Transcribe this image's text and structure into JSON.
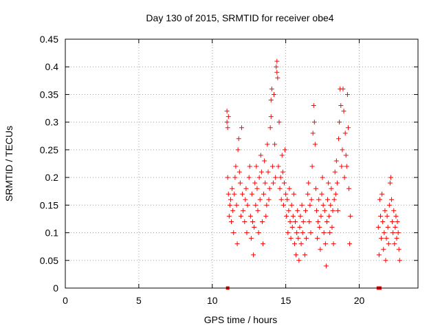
{
  "chart_data": {
    "type": "scatter",
    "title": "Day 130 of 2015, SRMTID for receiver obe4",
    "xlabel": "GPS time / hours",
    "ylabel": "SRMTID / TECUs",
    "xlim": [
      0,
      24
    ],
    "ylim": [
      0,
      0.45
    ],
    "xticks": [
      0,
      5,
      10,
      15,
      20
    ],
    "xtick_labels": [
      "0",
      "5",
      "10",
      "15",
      "20"
    ],
    "yticks": [
      0,
      0.05,
      0.1,
      0.15,
      0.2,
      0.25,
      0.3,
      0.35,
      0.4,
      0.45
    ],
    "ytick_labels": [
      "0",
      "0.05",
      "0.1",
      "0.15",
      "0.2",
      "0.25",
      "0.3",
      "0.35",
      "0.4",
      "0.45"
    ],
    "grid": true,
    "marker": "+",
    "color": "#ff0000",
    "series": [
      {
        "name": "SRMTID",
        "points": [
          [
            11.0,
            0.32
          ],
          [
            11.0,
            0.3
          ],
          [
            11.05,
            0.29
          ],
          [
            11.1,
            0.31
          ],
          [
            11.05,
            0.2
          ],
          [
            11.1,
            0.17
          ],
          [
            11.2,
            0.15
          ],
          [
            11.15,
            0.13
          ],
          [
            11.3,
            0.12
          ],
          [
            11.25,
            0.16
          ],
          [
            11.35,
            0.18
          ],
          [
            11.4,
            0.14
          ],
          [
            11.45,
            0.1
          ],
          [
            11.5,
            0.17
          ],
          [
            11.55,
            0.2
          ],
          [
            11.6,
            0.22
          ],
          [
            11.65,
            0.15
          ],
          [
            11.7,
            0.08
          ],
          [
            11.75,
            0.25
          ],
          [
            11.8,
            0.27
          ],
          [
            11.85,
            0.21
          ],
          [
            11.9,
            0.19
          ],
          [
            11.95,
            0.13
          ],
          [
            12.0,
            0.29
          ],
          [
            12.05,
            0.17
          ],
          [
            12.1,
            0.14
          ],
          [
            12.2,
            0.12
          ],
          [
            12.25,
            0.16
          ],
          [
            12.3,
            0.18
          ],
          [
            12.35,
            0.1
          ],
          [
            12.4,
            0.15
          ],
          [
            12.5,
            0.2
          ],
          [
            12.55,
            0.22
          ],
          [
            12.6,
            0.13
          ],
          [
            12.65,
            0.09
          ],
          [
            12.7,
            0.17
          ],
          [
            12.75,
            0.12
          ],
          [
            12.8,
            0.06
          ],
          [
            12.85,
            0.11
          ],
          [
            12.9,
            0.19
          ],
          [
            12.95,
            0.15
          ],
          [
            13.0,
            0.22
          ],
          [
            13.05,
            0.18
          ],
          [
            13.1,
            0.14
          ],
          [
            13.15,
            0.1
          ],
          [
            13.2,
            0.2
          ],
          [
            13.25,
            0.16
          ],
          [
            13.3,
            0.24
          ],
          [
            13.35,
            0.21
          ],
          [
            13.4,
            0.12
          ],
          [
            13.45,
            0.08
          ],
          [
            13.5,
            0.17
          ],
          [
            13.55,
            0.23
          ],
          [
            13.6,
            0.19
          ],
          [
            13.65,
            0.13
          ],
          [
            13.7,
            0.15
          ],
          [
            13.75,
            0.26
          ],
          [
            13.8,
            0.21
          ],
          [
            13.85,
            0.16
          ],
          [
            13.9,
            0.18
          ],
          [
            13.95,
            0.29
          ],
          [
            14.0,
            0.34
          ],
          [
            14.0,
            0.31
          ],
          [
            14.05,
            0.36
          ],
          [
            14.1,
            0.22
          ],
          [
            14.15,
            0.19
          ],
          [
            14.2,
            0.35
          ],
          [
            14.25,
            0.26
          ],
          [
            14.3,
            0.2
          ],
          [
            14.35,
            0.4
          ],
          [
            14.4,
            0.41
          ],
          [
            14.45,
            0.38
          ],
          [
            14.4,
            0.39
          ],
          [
            14.5,
            0.22
          ],
          [
            14.55,
            0.3
          ],
          [
            14.6,
            0.18
          ],
          [
            14.65,
            0.2
          ],
          [
            14.7,
            0.16
          ],
          [
            14.75,
            0.24
          ],
          [
            14.8,
            0.21
          ],
          [
            14.85,
            0.15
          ],
          [
            14.9,
            0.19
          ],
          [
            14.95,
            0.25
          ],
          [
            15.0,
            0.17
          ],
          [
            15.05,
            0.13
          ],
          [
            15.1,
            0.16
          ],
          [
            15.15,
            0.1
          ],
          [
            15.2,
            0.14
          ],
          [
            15.25,
            0.18
          ],
          [
            15.3,
            0.12
          ],
          [
            15.35,
            0.09
          ],
          [
            15.4,
            0.15
          ],
          [
            15.45,
            0.11
          ],
          [
            15.5,
            0.13
          ],
          [
            15.55,
            0.17
          ],
          [
            15.6,
            0.08
          ],
          [
            15.65,
            0.12
          ],
          [
            15.7,
            0.06
          ],
          [
            15.75,
            0.1
          ],
          [
            15.8,
            0.14
          ],
          [
            15.85,
            0.09
          ],
          [
            15.9,
            0.05
          ],
          [
            15.95,
            0.11
          ],
          [
            16.0,
            0.13
          ],
          [
            16.05,
            0.08
          ],
          [
            16.1,
            0.15
          ],
          [
            16.15,
            0.1
          ],
          [
            16.2,
            0.12
          ],
          [
            16.3,
            0.06
          ],
          [
            16.35,
            0.14
          ],
          [
            16.4,
            0.09
          ],
          [
            16.5,
            0.17
          ],
          [
            16.55,
            0.19
          ],
          [
            16.6,
            0.12
          ],
          [
            16.65,
            0.15
          ],
          [
            16.7,
            0.1
          ],
          [
            16.75,
            0.16
          ],
          [
            16.8,
            0.22
          ],
          [
            16.85,
            0.28
          ],
          [
            16.9,
            0.33
          ],
          [
            16.95,
            0.3
          ],
          [
            17.0,
            0.26
          ],
          [
            17.05,
            0.18
          ],
          [
            17.1,
            0.14
          ],
          [
            17.15,
            0.09
          ],
          [
            17.2,
            0.12
          ],
          [
            17.25,
            0.16
          ],
          [
            17.3,
            0.11
          ],
          [
            17.35,
            0.07
          ],
          [
            17.4,
            0.13
          ],
          [
            17.45,
            0.17
          ],
          [
            17.5,
            0.2
          ],
          [
            17.55,
            0.15
          ],
          [
            17.6,
            0.1
          ],
          [
            17.65,
            0.14
          ],
          [
            17.7,
            0.08
          ],
          [
            17.75,
            0.04
          ],
          [
            17.8,
            0.12
          ],
          [
            17.85,
            0.16
          ],
          [
            17.9,
            0.19
          ],
          [
            17.95,
            0.13
          ],
          [
            18.0,
            0.1
          ],
          [
            18.05,
            0.15
          ],
          [
            18.1,
            0.18
          ],
          [
            18.15,
            0.11
          ],
          [
            18.2,
            0.14
          ],
          [
            18.25,
            0.08
          ],
          [
            18.3,
            0.16
          ],
          [
            18.35,
            0.21
          ],
          [
            18.4,
            0.17
          ],
          [
            18.45,
            0.23
          ],
          [
            18.5,
            0.19
          ],
          [
            18.55,
            0.14
          ],
          [
            18.6,
            0.27
          ],
          [
            18.65,
            0.3
          ],
          [
            18.7,
            0.36
          ],
          [
            18.75,
            0.33
          ],
          [
            18.8,
            0.22
          ],
          [
            18.85,
            0.25
          ],
          [
            18.9,
            0.36
          ],
          [
            18.95,
            0.32
          ],
          [
            19.0,
            0.2
          ],
          [
            19.05,
            0.28
          ],
          [
            19.1,
            0.24
          ],
          [
            19.15,
            0.22
          ],
          [
            19.2,
            0.35
          ],
          [
            19.25,
            0.29
          ],
          [
            19.3,
            0.18
          ],
          [
            19.35,
            0.08
          ],
          [
            19.4,
            0.13
          ],
          [
            21.3,
            0.11
          ],
          [
            21.35,
            0.06
          ],
          [
            21.4,
            0.16
          ],
          [
            21.45,
            0.13
          ],
          [
            21.5,
            0.09
          ],
          [
            21.55,
            0.17
          ],
          [
            21.6,
            0.12
          ],
          [
            21.65,
            0.07
          ],
          [
            21.7,
            0.1
          ],
          [
            21.75,
            0.14
          ],
          [
            21.8,
            0.05
          ],
          [
            21.85,
            0.09
          ],
          [
            21.9,
            0.13
          ],
          [
            21.95,
            0.11
          ],
          [
            22.0,
            0.08
          ],
          [
            22.05,
            0.15
          ],
          [
            22.1,
            0.19
          ],
          [
            22.15,
            0.2
          ],
          [
            22.2,
            0.16
          ],
          [
            22.25,
            0.12
          ],
          [
            22.3,
            0.1
          ],
          [
            22.35,
            0.14
          ],
          [
            22.4,
            0.08
          ],
          [
            22.45,
            0.11
          ],
          [
            22.5,
            0.13
          ],
          [
            22.55,
            0.09
          ],
          [
            22.6,
            0.12
          ],
          [
            22.65,
            0.1
          ],
          [
            22.7,
            0.07
          ],
          [
            22.75,
            0.05
          ]
        ]
      }
    ],
    "baseline_markers": [
      [
        11.05,
        0
      ],
      [
        21.3,
        0
      ],
      [
        21.4,
        0
      ]
    ]
  }
}
